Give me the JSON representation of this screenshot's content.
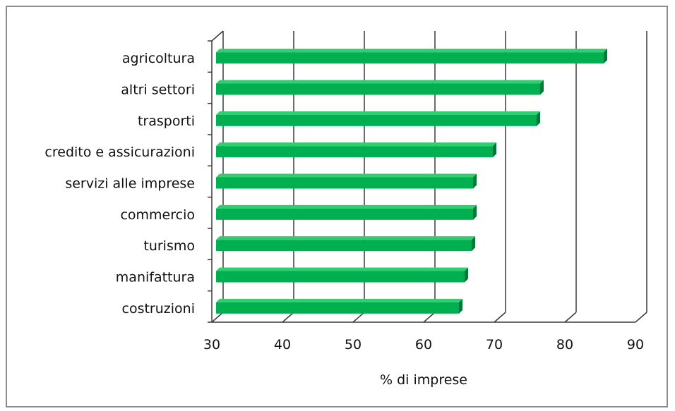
{
  "chart_data": {
    "type": "bar",
    "orientation": "horizontal",
    "style": "3d",
    "categories": [
      "agricoltura",
      "altri settori",
      "trasporti",
      "credito e assicurazioni",
      "servizi alle imprese",
      "commercio",
      "turismo",
      "manifattura",
      "costruzioni"
    ],
    "values": [
      85.5,
      76.5,
      76,
      69.8,
      67,
      67,
      66.8,
      65.8,
      65
    ],
    "xlabel": "% di imprese",
    "ylabel": "",
    "title": "",
    "xlim": [
      30,
      90
    ],
    "xticks": [
      "30",
      "40",
      "50",
      "60",
      "70",
      "80",
      "90"
    ],
    "grid": true,
    "legend": "none",
    "colors": {
      "bar_front": "#00b050",
      "bar_top": "#2fcf6f",
      "bar_side": "#007a36",
      "grid": "#3a3a3a"
    }
  }
}
